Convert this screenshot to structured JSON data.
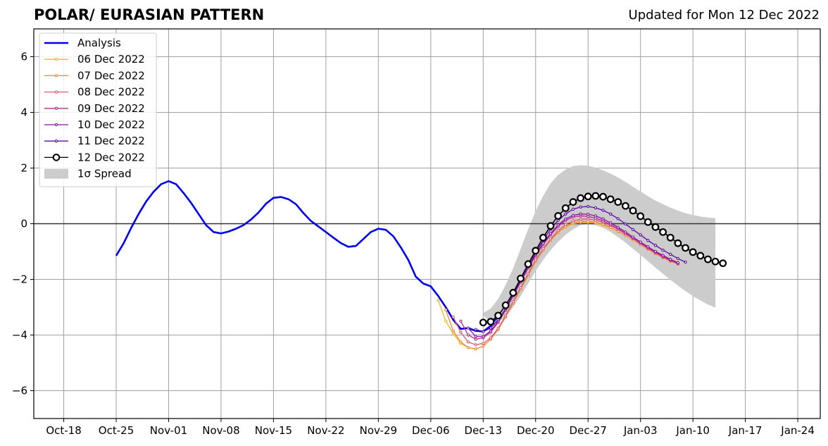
{
  "title": "POLAR/ EURASIAN  PATTERN",
  "subtitle": "Updated for Mon 12 Dec 2022",
  "chart_data": {
    "type": "line",
    "title": "POLAR/ EURASIAN  PATTERN",
    "subtitle": "Updated for Mon 12 Dec 2022",
    "xlabel": "",
    "ylabel": "",
    "x_unit": "date",
    "xlim": [
      "2022-10-14",
      "2023-01-27"
    ],
    "ylim": [
      -7,
      7
    ],
    "x_ticks": [
      "2022-10-18",
      "2022-10-25",
      "2022-11-01",
      "2022-11-08",
      "2022-11-15",
      "2022-11-22",
      "2022-11-29",
      "2022-12-06",
      "2022-12-13",
      "2022-12-20",
      "2022-12-27",
      "2023-01-03",
      "2023-01-10",
      "2023-01-17",
      "2023-01-24"
    ],
    "x_tick_labels": [
      "Oct-18",
      "Oct-25",
      "Nov-01",
      "Nov-08",
      "Nov-15",
      "Nov-22",
      "Nov-29",
      "Dec-06",
      "Dec-13",
      "Dec-20",
      "Dec-27",
      "Jan-03",
      "Jan-10",
      "Jan-17",
      "Jan-24"
    ],
    "y_ticks": [
      -6,
      -4,
      -2,
      0,
      2,
      4,
      6
    ],
    "y_tick_labels": [
      "−6",
      "−4",
      "−2",
      "0",
      "2",
      "4",
      "6"
    ],
    "grid": true,
    "zero_line": true,
    "legend_position": "top-left",
    "analysis": {
      "name": "Analysis",
      "color": "#0000ee",
      "start": "2022-10-25",
      "values": [
        -1.15,
        -0.7,
        -0.15,
        0.35,
        0.8,
        1.15,
        1.42,
        1.53,
        1.42,
        1.1,
        0.75,
        0.35,
        -0.05,
        -0.3,
        -0.35,
        -0.28,
        -0.18,
        -0.05,
        0.15,
        0.4,
        0.72,
        0.93,
        0.96,
        0.88,
        0.7,
        0.38,
        0.1,
        -0.1,
        -0.3,
        -0.5,
        -0.7,
        -0.83,
        -0.8,
        -0.55,
        -0.3,
        -0.18,
        -0.22,
        -0.45,
        -0.85,
        -1.3,
        -1.9,
        -2.15,
        -2.25,
        -2.6,
        -3.0,
        -3.45,
        -3.78,
        -3.75,
        -3.85,
        -3.87,
        -3.67,
        -3.3
      ]
    },
    "forecasts": [
      {
        "name": "06 Dec 2022",
        "color": "#f7b52b",
        "start": "2022-12-07",
        "values": [
          -2.75,
          -3.5,
          -3.95,
          -4.3,
          -4.45,
          -4.5,
          -4.4,
          -4.15,
          -3.8,
          -3.35,
          -2.85,
          -2.35,
          -1.85,
          -1.35,
          -0.95,
          -0.6,
          -0.32,
          -0.12,
          0.0,
          0.05,
          0.05,
          0.02,
          -0.05,
          -0.15,
          -0.28,
          -0.42,
          -0.58,
          -0.75,
          -0.92,
          -1.08,
          -1.22,
          -1.35,
          -1.45
        ]
      },
      {
        "name": "07 Dec 2022",
        "color": "#f1893a",
        "start": "2022-12-08",
        "values": [
          -3.1,
          -3.85,
          -4.25,
          -4.45,
          -4.5,
          -4.4,
          -4.15,
          -3.8,
          -3.35,
          -2.85,
          -2.35,
          -1.85,
          -1.35,
          -0.95,
          -0.6,
          -0.3,
          -0.1,
          0.03,
          0.08,
          0.08,
          0.05,
          -0.02,
          -0.13,
          -0.27,
          -0.42,
          -0.58,
          -0.75,
          -0.92,
          -1.08,
          -1.22,
          -1.35,
          -1.45
        ]
      },
      {
        "name": "08 Dec 2022",
        "color": "#dd5a6e",
        "start": "2022-12-09",
        "values": [
          -3.35,
          -3.9,
          -4.25,
          -4.35,
          -4.3,
          -4.1,
          -3.75,
          -3.3,
          -2.8,
          -2.3,
          -1.8,
          -1.3,
          -0.9,
          -0.55,
          -0.25,
          -0.03,
          0.1,
          0.16,
          0.17,
          0.13,
          0.05,
          -0.06,
          -0.2,
          -0.36,
          -0.53,
          -0.7,
          -0.88,
          -1.04,
          -1.2,
          -1.33,
          -1.44
        ]
      },
      {
        "name": "09 Dec 2022",
        "color": "#b42a8f",
        "start": "2022-12-10",
        "values": [
          -3.5,
          -4.0,
          -4.15,
          -4.1,
          -3.9,
          -3.55,
          -3.1,
          -2.6,
          -2.1,
          -1.6,
          -1.15,
          -0.75,
          -0.4,
          -0.1,
          0.12,
          0.24,
          0.28,
          0.26,
          0.2,
          0.1,
          -0.03,
          -0.18,
          -0.35,
          -0.52,
          -0.7,
          -0.87,
          -1.03,
          -1.18,
          -1.31,
          -1.42
        ]
      },
      {
        "name": "10 Dec 2022",
        "color": "#8b0fa3",
        "start": "2022-12-11",
        "values": [
          -3.75,
          -4.05,
          -4.05,
          -3.85,
          -3.5,
          -3.05,
          -2.55,
          -2.05,
          -1.55,
          -1.1,
          -0.7,
          -0.35,
          -0.05,
          0.17,
          0.3,
          0.35,
          0.34,
          0.28,
          0.17,
          0.03,
          -0.13,
          -0.3,
          -0.48,
          -0.66,
          -0.83,
          -1.0,
          -1.14,
          -1.28,
          -1.4
        ]
      },
      {
        "name": "11 Dec 2022",
        "color": "#5c0aa4",
        "start": "2022-12-12",
        "values": [
          -3.8,
          -3.88,
          -3.75,
          -3.45,
          -3.05,
          -2.55,
          -2.05,
          -1.55,
          -1.05,
          -0.6,
          -0.2,
          0.12,
          0.35,
          0.52,
          0.6,
          0.62,
          0.57,
          0.48,
          0.35,
          0.18,
          -0.01,
          -0.21,
          -0.4,
          -0.6,
          -0.78,
          -0.95,
          -1.1,
          -1.25,
          -1.38
        ]
      },
      {
        "name": "12 Dec 2022",
        "color": "#000000",
        "start": "2022-12-13",
        "values": [
          -3.55,
          -3.52,
          -3.3,
          -2.93,
          -2.48,
          -1.97,
          -1.45,
          -0.97,
          -0.5,
          -0.08,
          0.28,
          0.56,
          0.78,
          0.92,
          0.98,
          1.0,
          0.97,
          0.88,
          0.78,
          0.64,
          0.47,
          0.27,
          0.06,
          -0.12,
          -0.3,
          -0.5,
          -0.7,
          -0.87,
          -1.02,
          -1.15,
          -1.28,
          -1.36,
          -1.42
        ]
      }
    ],
    "spread": {
      "name": "1σ Spread",
      "color": "#cccccc",
      "start": "2022-12-13",
      "upper": [
        -3.2,
        -3.05,
        -2.7,
        -2.2,
        -1.6,
        -0.9,
        -0.2,
        0.45,
        1.0,
        1.45,
        1.75,
        1.95,
        2.07,
        2.1,
        2.08,
        2.02,
        1.92,
        1.8,
        1.66,
        1.5,
        1.33,
        1.16,
        0.99,
        0.83,
        0.7,
        0.58,
        0.47,
        0.38,
        0.31,
        0.26,
        0.22,
        0.2
      ],
      "lower": [
        -3.3,
        -3.55,
        -3.55,
        -3.35,
        -3.0,
        -2.6,
        -2.15,
        -1.7,
        -1.3,
        -0.95,
        -0.65,
        -0.4,
        -0.2,
        -0.05,
        0.0,
        -0.05,
        -0.15,
        -0.3,
        -0.48,
        -0.68,
        -0.9,
        -1.12,
        -1.35,
        -1.58,
        -1.8,
        -2.02,
        -2.22,
        -2.42,
        -2.6,
        -2.76,
        -2.9,
        -3.02
      ]
    }
  }
}
